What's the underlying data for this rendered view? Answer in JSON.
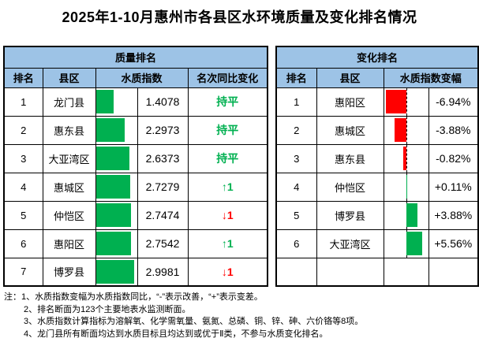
{
  "title": "2025年1-10月惠州市各县区水环境质量及变化排名情况",
  "colors": {
    "header_bg": "#9DC3E6",
    "bar_green": "#00B050",
    "bar_red": "#FF0000",
    "up_green": "#00B050",
    "down_red": "#FF0000",
    "border": "#000000"
  },
  "quality_table": {
    "header": "质量排名",
    "columns": {
      "rank": "排名",
      "county": "县区",
      "index": "水质指数",
      "change": "名次同比变化"
    },
    "bar_axis_max": 3.24,
    "rows": [
      {
        "rank": "1",
        "county": "龙门县",
        "index": "1.4078",
        "change": "持平",
        "change_type": "flat"
      },
      {
        "rank": "2",
        "county": "惠东县",
        "index": "2.2973",
        "change": "持平",
        "change_type": "flat"
      },
      {
        "rank": "3",
        "county": "大亚湾区",
        "index": "2.6373",
        "change": "持平",
        "change_type": "flat"
      },
      {
        "rank": "4",
        "county": "惠城区",
        "index": "2.7279",
        "change": "↑1",
        "change_type": "up"
      },
      {
        "rank": "5",
        "county": "仲恺区",
        "index": "2.7474",
        "change": "↓1",
        "change_type": "down"
      },
      {
        "rank": "6",
        "county": "惠阳区",
        "index": "2.7542",
        "change": "↑1",
        "change_type": "up"
      },
      {
        "rank": "7",
        "county": "博罗县",
        "index": "2.9981",
        "change": "↓1",
        "change_type": "down"
      }
    ]
  },
  "change_table": {
    "header": "变化排名",
    "columns": {
      "rank": "排名",
      "county": "县区",
      "delta": "水质指数变幅"
    },
    "bar_axis_max": 7.5,
    "rows": [
      {
        "rank": "1",
        "county": "惠阳区",
        "delta": "-6.94%",
        "value": -6.94
      },
      {
        "rank": "2",
        "county": "惠城区",
        "delta": "-3.88%",
        "value": -3.88
      },
      {
        "rank": "3",
        "county": "惠东县",
        "delta": "-0.82%",
        "value": -0.82
      },
      {
        "rank": "4",
        "county": "仲恺区",
        "delta": "+0.11%",
        "value": 0.11
      },
      {
        "rank": "5",
        "county": "博罗县",
        "delta": "+3.88%",
        "value": 3.88
      },
      {
        "rank": "6",
        "county": "大亚湾区",
        "delta": "+5.56%",
        "value": 5.56
      },
      {
        "rank": "",
        "county": "",
        "delta": "",
        "value": null
      }
    ]
  },
  "notes": {
    "lines": [
      "注：1、水质指数变幅为水质指数同比，“-”表示改善，“+”表示变差。",
      "2、排名断面为123个主要地表水监测断面。",
      "3、水质指数计算指标为溶解氧、化学需氧量、氨氮、总磷、铜、锌、砷、六价铬等8项。",
      "4、龙门县所有断面均达到水质目标且均达到或优于Ⅱ类，不参与水质变化排名。"
    ]
  },
  "chart_data": [
    {
      "type": "table",
      "title": "质量排名",
      "columns": [
        "排名",
        "县区",
        "水质指数(条形)",
        "水质指数",
        "名次同比变化"
      ],
      "categories": [
        "龙门县",
        "惠东县",
        "大亚湾区",
        "惠城区",
        "仲恺区",
        "惠阳区",
        "博罗县"
      ],
      "values": [
        1.4078,
        2.2973,
        2.6373,
        2.7279,
        2.7474,
        2.7542,
        2.9981
      ],
      "rank_change_labels": [
        "持平",
        "持平",
        "持平",
        "↑1",
        "↓1",
        "↑1",
        "↓1"
      ],
      "bar_style": "green data bars, zero-based, left-aligned",
      "xlim": [
        0,
        3.24
      ]
    },
    {
      "type": "table",
      "title": "变化排名",
      "columns": [
        "排名",
        "县区",
        "水质指数变幅(条形)",
        "水质指数变幅"
      ],
      "categories": [
        "惠阳区",
        "惠城区",
        "惠东县",
        "仲恺区",
        "博罗县",
        "大亚湾区"
      ],
      "values": [
        -6.94,
        -3.88,
        -0.82,
        0.11,
        3.88,
        5.56
      ],
      "value_labels": [
        "-6.94%",
        "-3.88%",
        "-0.82%",
        "+0.11%",
        "+3.88%",
        "+5.56%"
      ],
      "bar_style": "diverging bars from dashed zero axis: negative red to left, positive green to right",
      "xlim": [
        -7.5,
        7.5
      ]
    }
  ]
}
